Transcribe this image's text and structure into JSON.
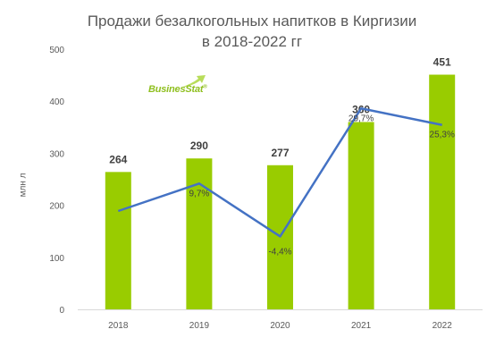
{
  "chart_data": {
    "type": "bar",
    "title": "Продажи безалкогольных напитков в Киргизии",
    "subtitle": "в 2018-2022 гг",
    "ylabel": "млн л",
    "categories": [
      "2018",
      "2019",
      "2020",
      "2021",
      "2022"
    ],
    "ylim": [
      0,
      500
    ],
    "yticks": [
      0,
      100,
      200,
      300,
      400,
      500
    ],
    "grid": false,
    "series": [
      {
        "type": "bar",
        "values": [
          264,
          290,
          277,
          360,
          451
        ],
        "labels": [
          "264",
          "290",
          "277",
          "360",
          "451"
        ],
        "color": "#99cc00"
      },
      {
        "type": "line",
        "values": [
          null,
          9.7,
          -4.4,
          29.7,
          25.3
        ],
        "labels": [
          "",
          "9,7%",
          "-4,4%",
          "29,7%",
          "25,3%"
        ],
        "color": "#4472c4"
      }
    ]
  },
  "logo": {
    "text": "BusinesStat",
    "mark": "®"
  }
}
